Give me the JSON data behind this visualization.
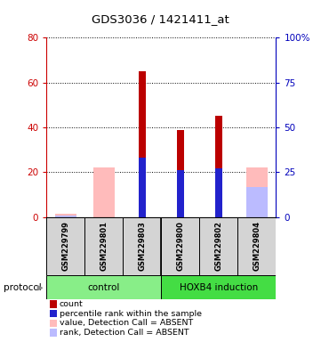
{
  "title": "GDS3036 / 1421411_at",
  "samples": [
    "GSM229799",
    "GSM229801",
    "GSM229803",
    "GSM229800",
    "GSM229802",
    "GSM229804"
  ],
  "red_bars": [
    0,
    0,
    65,
    39,
    45,
    0
  ],
  "blue_bars": [
    0,
    0,
    33,
    26,
    27,
    0
  ],
  "pink_bars": [
    1.5,
    22,
    0,
    0,
    0,
    22
  ],
  "lightblue_bars": [
    1.0,
    0,
    0,
    0,
    0,
    17
  ],
  "ylim_left": [
    0,
    80
  ],
  "ylim_right": [
    0,
    100
  ],
  "yticks_left": [
    0,
    20,
    40,
    60,
    80
  ],
  "ytick_labels_right": [
    "0",
    "25",
    "50",
    "75",
    "100%"
  ],
  "left_color": "#cc0000",
  "right_color": "#0000bb",
  "red_color": "#bb0000",
  "blue_color": "#2222cc",
  "pink_color": "#ffbbbb",
  "lightblue_color": "#bbbbff",
  "green_light": "#aaffaa",
  "green_dark": "#44ee44",
  "legend_items": [
    {
      "label": "count",
      "color": "#bb0000"
    },
    {
      "label": "percentile rank within the sample",
      "color": "#2222cc"
    },
    {
      "label": "value, Detection Call = ABSENT",
      "color": "#ffbbbb"
    },
    {
      "label": "rank, Detection Call = ABSENT",
      "color": "#bbbbff"
    }
  ]
}
